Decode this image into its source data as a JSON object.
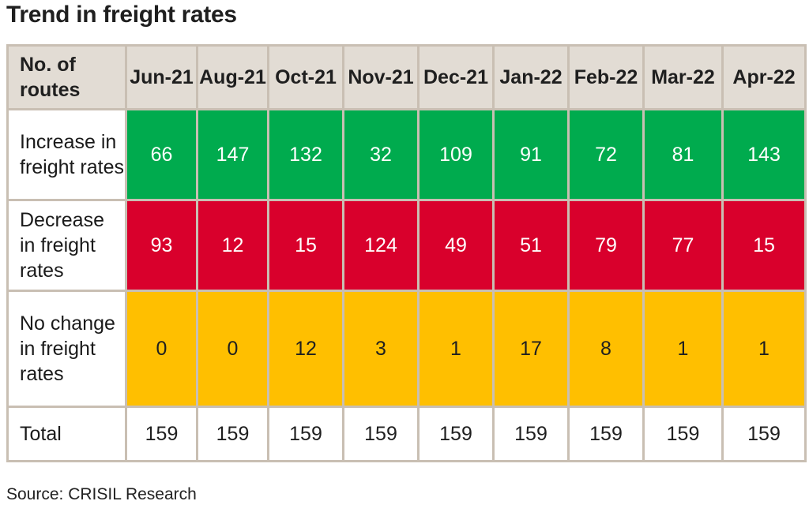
{
  "title": "Trend in freight rates",
  "source": "Source: CRISIL Research",
  "chart_data": {
    "type": "table",
    "title": "Trend in freight rates",
    "header": [
      "No. of routes",
      "Jun-21",
      "Aug-21",
      "Oct-21",
      "Nov-21",
      "Dec-21",
      "Jan-22",
      "Feb-22",
      "Mar-22",
      "Apr-22"
    ],
    "rows": [
      {
        "label": "Increase in freight rates",
        "color": "#00ab4e",
        "values": [
          66,
          147,
          132,
          32,
          109,
          91,
          72,
          81,
          143
        ]
      },
      {
        "label": "Decrease in freight rates",
        "color": "#d9002c",
        "values": [
          93,
          12,
          15,
          124,
          49,
          51,
          79,
          77,
          15
        ]
      },
      {
        "label": "No change in freight rates",
        "color": "#ffbf00",
        "values": [
          0,
          0,
          12,
          3,
          1,
          17,
          8,
          1,
          1
        ]
      },
      {
        "label": "Total",
        "color": "#ffffff",
        "values": [
          159,
          159,
          159,
          159,
          159,
          159,
          159,
          159,
          159
        ]
      }
    ]
  }
}
